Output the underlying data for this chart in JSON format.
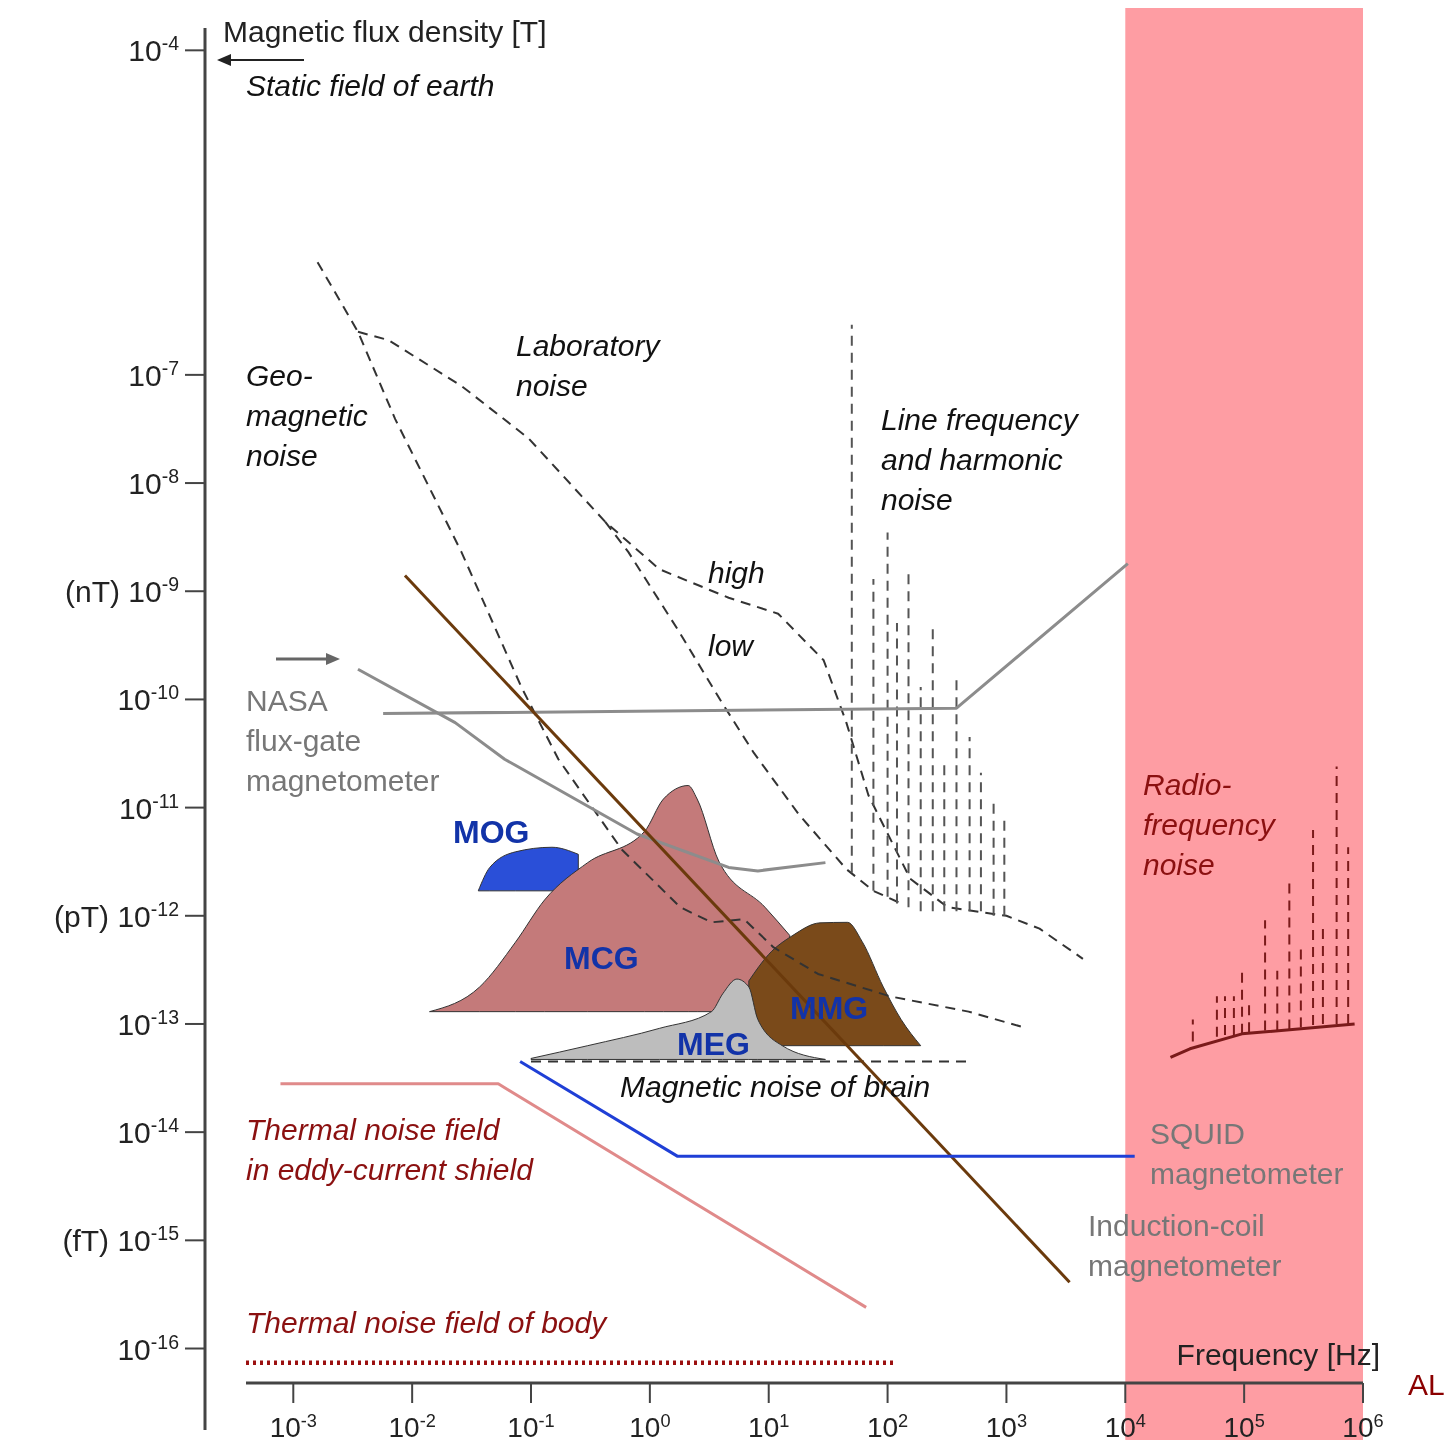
{
  "chart_data": {
    "type": "line",
    "xlabel": "Frequency [Hz]",
    "ylabel": "Magnetic flux density [T]",
    "log": "xy",
    "xlim": [
      0.0004,
      1000000
    ],
    "ylim": [
      4.8e-17,
      0.00013
    ],
    "xticks": [
      {
        "value": 0.001,
        "label": "10$^{-3}$"
      },
      {
        "value": 0.01,
        "label": "10$^{-2}$"
      },
      {
        "value": 0.1,
        "label": "10$^{-1}$"
      },
      {
        "value": 1,
        "label": "10$^{0}$"
      },
      {
        "value": 10,
        "label": "10$^{1}$"
      },
      {
        "value": 100,
        "label": "10$^{2}$"
      },
      {
        "value": 1000,
        "label": "10$^{3}$"
      },
      {
        "value": 10000,
        "label": "10$^{4}$"
      },
      {
        "value": 100000,
        "label": "10$^{5}$"
      },
      {
        "value": 1000000,
        "label": "10$^{6}$"
      }
    ],
    "yticks": [
      {
        "value": 0.0001,
        "label": "10$^{-4}$"
      },
      {
        "value": 1e-07,
        "label": "10$^{-7}$"
      },
      {
        "value": 1e-08,
        "label": "10$^{-8}$"
      },
      {
        "value": 1e-09,
        "label": "(nT) 10$^{-9}$"
      },
      {
        "value": 1e-10,
        "label": "10$^{-10}$"
      },
      {
        "value": 1e-11,
        "label": "10$^{-11}$"
      },
      {
        "value": 1e-12,
        "label": "(pT) 10$^{-12}$"
      },
      {
        "value": 1e-13,
        "label": "10$^{-13}$"
      },
      {
        "value": 1e-14,
        "label": "10$^{-14}$"
      },
      {
        "value": 1e-15,
        "label": "(fT) 10$^{-15}$"
      },
      {
        "value": 1e-16,
        "label": "10$^{-16}$"
      }
    ],
    "bands": [
      {
        "axis": "x",
        "from": 10000,
        "to": 1000000,
        "color": "#fe9da3"
      }
    ],
    "series": [
      {
        "type": "area",
        "color": "#2a4fd8",
        "x": [
          0.036,
          0.045,
          0.074,
          0.15,
          0.25
        ],
        "values": [
          1.7e-12,
          2.8e-12,
          3.9e-12,
          4.3e-12,
          3.7e-12
        ]
      },
      {
        "type": "area",
        "color": "#c47a7a",
        "x": [
          0.014,
          0.037,
          0.074,
          0.13,
          0.3,
          0.9,
          1.3,
          2.1,
          2.5,
          3.8,
          9.3,
          15
        ],
        "values": [
          1.3e-13,
          2.2e-13,
          5.7e-13,
          1.4e-12,
          3.1e-12,
          6e-12,
          1.2e-11,
          1.6e-11,
          1.2e-11,
          3.2e-12,
          1.2e-12,
          6.6e-13
        ]
      },
      {
        "type": "area",
        "color": "#7a4a1a",
        "x": [
          6.8,
          10,
          16,
          27,
          46,
          61,
          92,
          130,
          190
        ],
        "values": [
          2.5e-13,
          4.4e-13,
          6.6e-13,
          8.6e-13,
          8.7e-13,
          5.8e-13,
          2.2e-13,
          1.1e-13,
          6.3e-14
        ]
      },
      {
        "type": "area",
        "color": "#bdbdbd",
        "x": [
          0.1,
          0.3,
          1.2,
          3.3,
          4.1,
          5.4,
          6.8,
          8.1,
          13,
          30
        ],
        "values": [
          4.8e-14,
          6.3e-14,
          9.1e-14,
          1.3e-13,
          1.9e-13,
          2.6e-13,
          2.2e-13,
          1.1e-13,
          6.3e-14,
          4.7e-14
        ]
      },
      {
        "color": "#333333",
        "line_style": "dashed",
        "x": [
          0.0016,
          0.0035,
          0.0072,
          0.026,
          0.083,
          0.17,
          0.58,
          1.8,
          3.3,
          6.2,
          11,
          26,
          105,
          480,
          1500
        ],
        "values": [
          1.1e-06,
          2.5e-07,
          3.9e-08,
          2.3e-09,
          1.3e-10,
          2.8e-11,
          4.1e-12,
          1.2e-12,
          8.7e-13,
          9.3e-13,
          5.1e-13,
          2.9e-13,
          1.8e-13,
          1.3e-13,
          9.1e-14
        ]
      },
      {
        "color": "#333333",
        "line_style": "dashed",
        "x": [
          0.0035,
          0.0063,
          0.026,
          0.095,
          0.42,
          1.2,
          4.6,
          12,
          29,
          45,
          69,
          155,
          320,
          1000,
          1900,
          4400
        ],
        "values": [
          2.5e-07,
          2.1e-07,
          7.9e-08,
          2.6e-08,
          4.4e-09,
          1.6e-09,
          8.7e-10,
          6.2e-10,
          2.3e-10,
          6.1e-11,
          1.3e-11,
          2.2e-12,
          1.2e-12,
          1e-12,
          7.6e-13,
          4e-13
        ]
      },
      {
        "color": "#333333",
        "line_style": "dashed",
        "x": [
          0.42,
          0.66,
          1.7,
          4,
          7.5,
          18,
          45,
          76,
          130
        ],
        "values": [
          4.4e-09,
          2.3e-09,
          4.5e-10,
          9.5e-11,
          3.2e-11,
          8.6e-12,
          2.7e-12,
          1.7e-12,
          1.3e-12
        ]
      },
      {
        "color": "#333333",
        "line_style": "dashed",
        "x": [
          0.1,
          480
        ],
        "values": [
          4.5e-14,
          4.5e-14
        ]
      },
      {
        "color": "#555555",
        "line_style": "dashed",
        "x": [
          50,
          50
        ],
        "values": [
          2.5e-12,
          2.9e-07
        ]
      },
      {
        "color": "#555555",
        "line_style": "dashed",
        "x": [
          76,
          76
        ],
        "values": [
          1.7e-12,
          1.3e-09
        ]
      },
      {
        "color": "#555555",
        "line_style": "dashed",
        "x": [
          100,
          100
        ],
        "values": [
          1.5e-12,
          3.5e-09
        ]
      },
      {
        "color": "#555555",
        "line_style": "dashed",
        "x": [
          120,
          120
        ],
        "values": [
          1.3e-12,
          5.1e-10
        ]
      },
      {
        "color": "#555555",
        "line_style": "dashed",
        "x": [
          150,
          150
        ],
        "values": [
          1.2e-12,
          1.5e-09
        ]
      },
      {
        "color": "#555555",
        "line_style": "dashed",
        "x": [
          190,
          190
        ],
        "values": [
          1.1e-12,
          1.3e-10
        ]
      },
      {
        "color": "#555555",
        "line_style": "dashed",
        "x": [
          240,
          240
        ],
        "values": [
          1.1e-12,
          4.9e-10
        ]
      },
      {
        "color": "#555555",
        "line_style": "dashed",
        "x": [
          300,
          300
        ],
        "values": [
          1.1e-12,
          2.7e-11
        ]
      },
      {
        "color": "#555555",
        "line_style": "dashed",
        "x": [
          380,
          380
        ],
        "values": [
          1.1e-12,
          1.6e-10
        ]
      },
      {
        "color": "#555555",
        "line_style": "dashed",
        "x": [
          490,
          490
        ],
        "values": [
          1.1e-12,
          4.5e-11
        ]
      },
      {
        "color": "#555555",
        "line_style": "dashed",
        "x": [
          610,
          610
        ],
        "values": [
          1.1e-12,
          2.1e-11
        ]
      },
      {
        "color": "#555555",
        "line_style": "dashed",
        "x": [
          780,
          780
        ],
        "values": [
          1e-12,
          1.2e-11
        ]
      },
      {
        "color": "#555555",
        "line_style": "dashed",
        "x": [
          960,
          960
        ],
        "values": [
          1e-12,
          7.8e-12
        ]
      },
      {
        "color": "#7a1a1a",
        "line_style": "solid",
        "x": [
          24000,
          35000,
          96000,
          850000
        ],
        "values": [
          4.9e-14,
          5.9e-14,
          8.1e-14,
          1e-13
        ]
      },
      {
        "color": "#7a1a1a",
        "line_style": "dashed",
        "x": [
          37000,
          37000
        ],
        "values": [
          6.9e-14,
          1.1e-13
        ]
      },
      {
        "color": "#7a1a1a",
        "line_style": "dashed",
        "x": [
          59000,
          59000
        ],
        "values": [
          7.6e-14,
          1.8e-13
        ]
      },
      {
        "color": "#7a1a1a",
        "line_style": "dashed",
        "x": [
          69000,
          69000
        ],
        "values": [
          7.9e-14,
          1.8e-13
        ]
      },
      {
        "color": "#7a1a1a",
        "line_style": "dashed",
        "x": [
          82000,
          82000
        ],
        "values": [
          7.9e-14,
          1.8e-13
        ]
      },
      {
        "color": "#7a1a1a",
        "line_style": "dashed",
        "x": [
          96000,
          96000
        ],
        "values": [
          8.1e-14,
          3.2e-13
        ]
      },
      {
        "color": "#7a1a1a",
        "line_style": "dashed",
        "x": [
          110000,
          110000
        ],
        "values": [
          8.4e-14,
          1.7e-13
        ]
      },
      {
        "color": "#7a1a1a",
        "line_style": "dashed",
        "x": [
          150000,
          150000
        ],
        "values": [
          8.7e-14,
          9.1e-13
        ]
      },
      {
        "color": "#7a1a1a",
        "line_style": "dashed",
        "x": [
          190000,
          190000
        ],
        "values": [
          8.7e-14,
          3.1e-13
        ]
      },
      {
        "color": "#7a1a1a",
        "line_style": "dashed",
        "x": [
          240000,
          240000
        ],
        "values": [
          8.9e-14,
          2.2e-12
        ]
      },
      {
        "color": "#7a1a1a",
        "line_style": "dashed",
        "x": [
          300000,
          300000
        ],
        "values": [
          9.3e-14,
          5.5e-13
        ]
      },
      {
        "color": "#7a1a1a",
        "line_style": "dashed",
        "x": [
          380000,
          380000
        ],
        "values": [
          9.8e-14,
          6.2e-12
        ]
      },
      {
        "color": "#7a1a1a",
        "line_style": "dashed",
        "x": [
          460000,
          460000
        ],
        "values": [
          1e-13,
          8.5e-13
        ]
      },
      {
        "color": "#7a1a1a",
        "line_style": "dashed",
        "x": [
          600000,
          600000
        ],
        "values": [
          1e-13,
          2.4e-11
        ]
      },
      {
        "color": "#7a1a1a",
        "line_style": "dashed",
        "x": [
          750000,
          750000
        ],
        "values": [
          1e-13,
          4.3e-12
        ]
      },
      {
        "color": "#8c8c8c",
        "line_style": "solid",
        "x": [
          0.0035,
          0.023,
          0.06,
          0.78,
          4.6,
          8.1,
          30
        ],
        "values": [
          1.9e-10,
          6.1e-11,
          2.8e-11,
          5.7e-12,
          2.8e-12,
          2.6e-12,
          3.1e-12
        ]
      },
      {
        "color": "#8c8c8c",
        "line_style": "solid",
        "x": [
          0.0057,
          380,
          10500
        ],
        "values": [
          7.4e-11,
          8.3e-11,
          1.8e-09
        ]
      },
      {
        "color": "#6b3a0c",
        "line_style": "solid",
        "x": [
          0.0087,
          3400
        ],
        "values": [
          1.4e-09,
          4.1e-16
        ]
      },
      {
        "color": "#1f3fd6",
        "line_style": "solid",
        "x": [
          0.081,
          1.7,
          12000
        ],
        "values": [
          4.5e-14,
          6e-15,
          6e-15
        ]
      },
      {
        "color": "#e08a8a",
        "line_style": "solid",
        "x": [
          0.00078,
          0.053,
          66
        ],
        "values": [
          2.8e-14,
          2.8e-14,
          2.4e-16
        ]
      },
      {
        "color": "#9b1010",
        "line_style": "dotted",
        "x": [
          0.0004,
          120
        ],
        "values": [
          7.4e-17,
          7.4e-17
        ]
      }
    ],
    "annotations": [
      "Static field of earth",
      "Geo-\nmagnetic\nnoise",
      "Laboratory\nnoise",
      "high",
      "low",
      "Line frequency\nand harmonic\nnoise",
      "NASA\nflux-gate\nmagnetometer",
      "MOG",
      "MCG",
      "MMG",
      "MEG",
      "Magnetic noise of brain",
      "Thermal noise field\nin eddy-current shield",
      "Radio-\nfrequency\nnoise",
      "SQUID\nmagnetometer",
      "Induction-coil\nmagnetometer",
      "Thermal noise field of body",
      "AL"
    ]
  }
}
